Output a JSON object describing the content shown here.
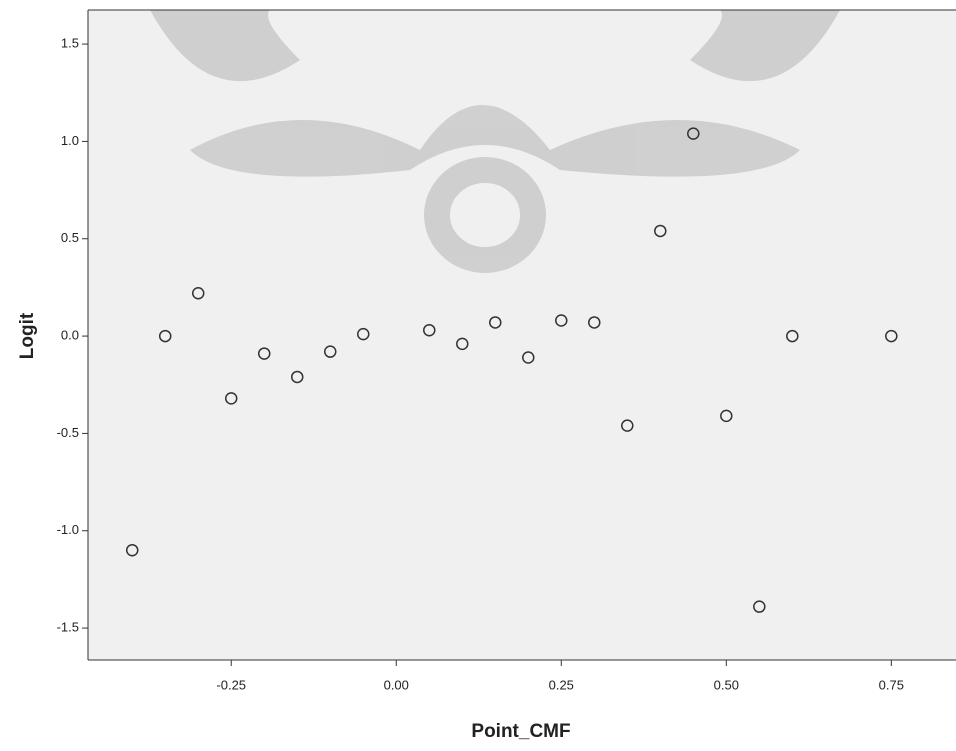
{
  "chart_data": {
    "type": "scatter",
    "x_label": "Point_CMF",
    "y_label": "Logit",
    "x": [
      -0.4,
      -0.35,
      -0.3,
      -0.25,
      -0.2,
      -0.15,
      -0.1,
      -0.05,
      0.05,
      0.1,
      0.15,
      0.2,
      0.25,
      0.3,
      0.35,
      0.4,
      0.45,
      0.5,
      0.55,
      0.6,
      0.75
    ],
    "values": [
      -1.1,
      0.0,
      0.22,
      -0.32,
      -0.09,
      -0.21,
      -0.08,
      0.01,
      0.03,
      -0.04,
      0.07,
      -0.11,
      0.08,
      0.07,
      -0.46,
      0.54,
      1.04,
      -0.41,
      -1.39,
      0.0,
      0.0
    ],
    "color": "#333333",
    "xlim": [
      -0.467,
      0.848
    ],
    "ylim": [
      -1.664,
      1.675
    ],
    "xticks": [
      -0.25,
      {
        "value": 0,
        "label": "0.00"
      },
      0.25,
      {
        "value": 0.5,
        "label": "0.50"
      },
      0.75
    ],
    "yticks": [
      -1.5,
      {
        "value": -1,
        "label": "-1.0"
      },
      -0.5,
      {
        "value": 0,
        "label": "0.0"
      },
      0.5,
      {
        "value": 1,
        "label": "1.0"
      },
      1.5
    ],
    "grid": false
  }
}
